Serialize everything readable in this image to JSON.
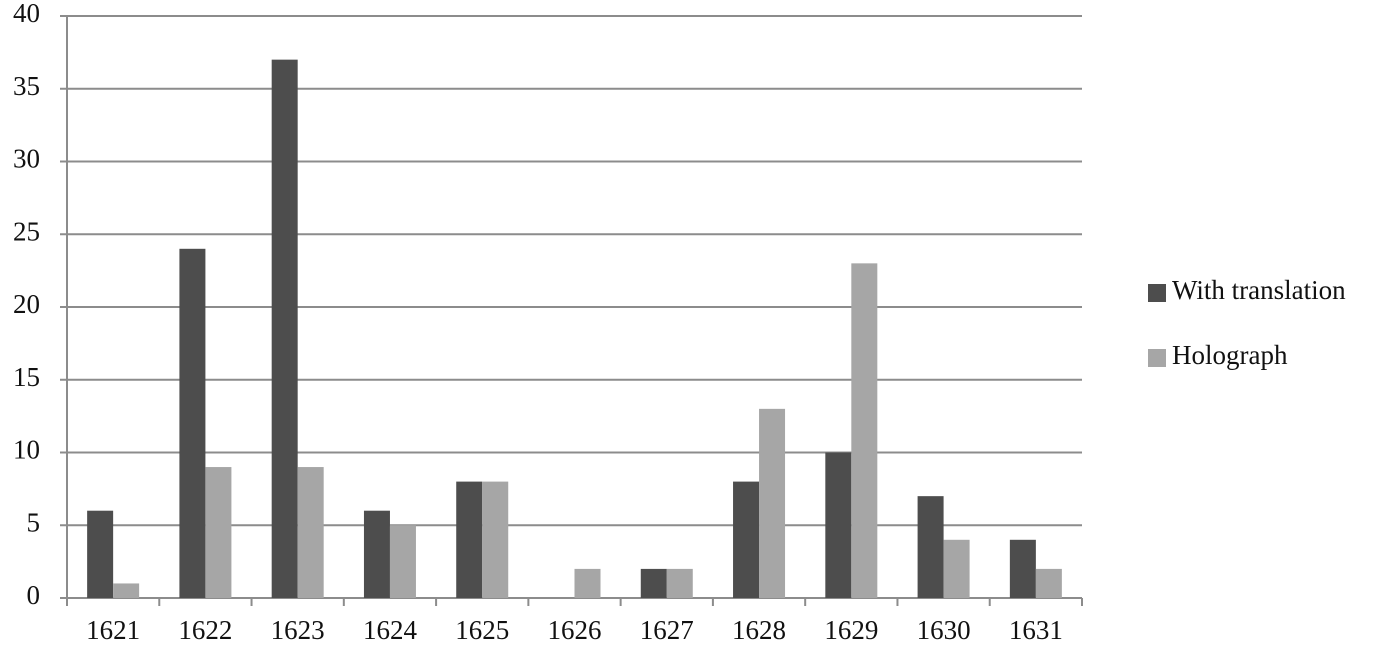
{
  "chart_data": {
    "type": "bar",
    "categories": [
      "1621",
      "1622",
      "1623",
      "1624",
      "1625",
      "1626",
      "1627",
      "1628",
      "1629",
      "1630",
      "1631"
    ],
    "series": [
      {
        "name": "With translation",
        "color": "#4d4d4d",
        "values": [
          6,
          24,
          37,
          6,
          8,
          0,
          2,
          8,
          10,
          7,
          4
        ]
      },
      {
        "name": "Holograph",
        "color": "#a6a6a6",
        "values": [
          1,
          9,
          9,
          5,
          8,
          2,
          2,
          13,
          23,
          4,
          2
        ]
      }
    ],
    "ylim": [
      0,
      40
    ],
    "yticks": [
      0,
      5,
      10,
      15,
      20,
      25,
      30,
      35,
      40
    ],
    "grid": true,
    "legend": "right"
  }
}
